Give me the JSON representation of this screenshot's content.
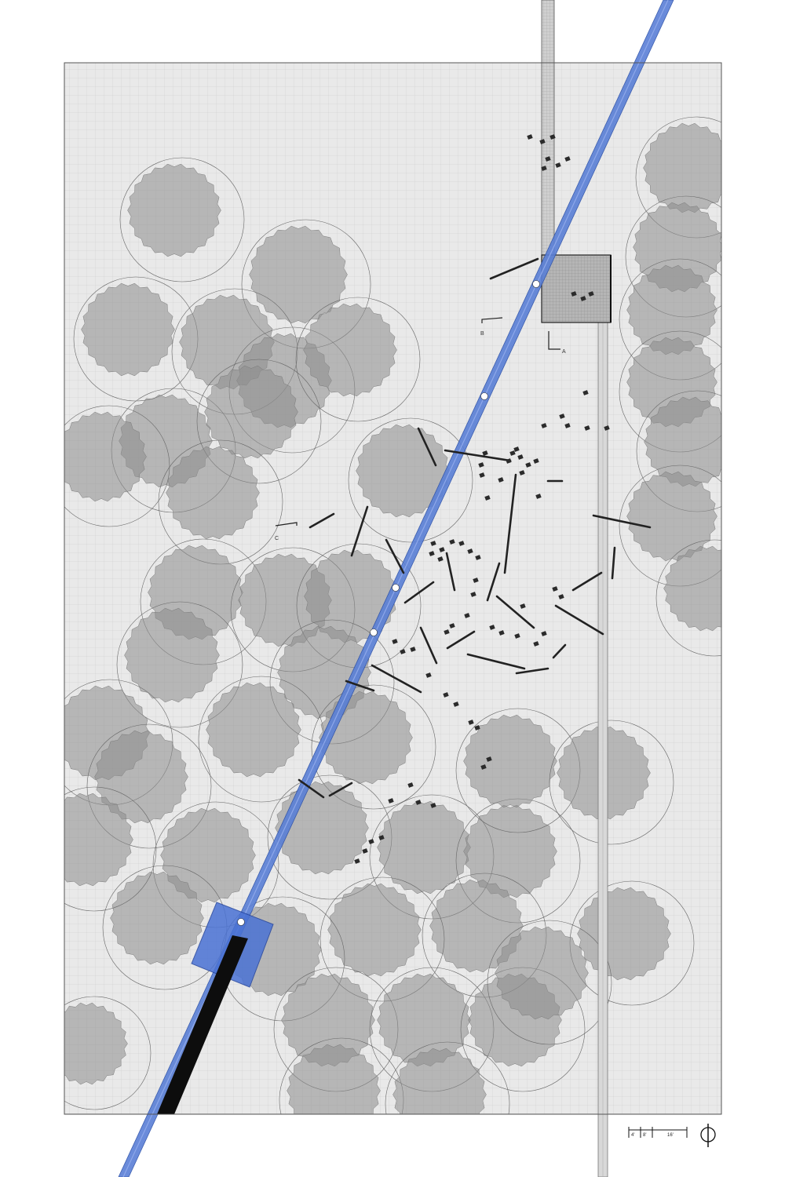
{
  "drawing": {
    "type": "site plan",
    "section_markers": [
      "A",
      "B",
      "C"
    ],
    "scale_bar": {
      "labels": [
        "4'",
        "8'",
        "16'"
      ]
    },
    "north_arrow": "north-arrow-icon",
    "colors": {
      "paper": "#ffffff",
      "ground": "#e9e9e9",
      "grid_line": "#c4c4c4",
      "canopy": "#8f8f8f",
      "canopy_outline": "#555555",
      "path_blue": "#5a7fd6",
      "path_dark_blue": "#2a4fa8",
      "walkway_gray": "#d6d6d6",
      "elements": "#2b2b2b"
    }
  }
}
